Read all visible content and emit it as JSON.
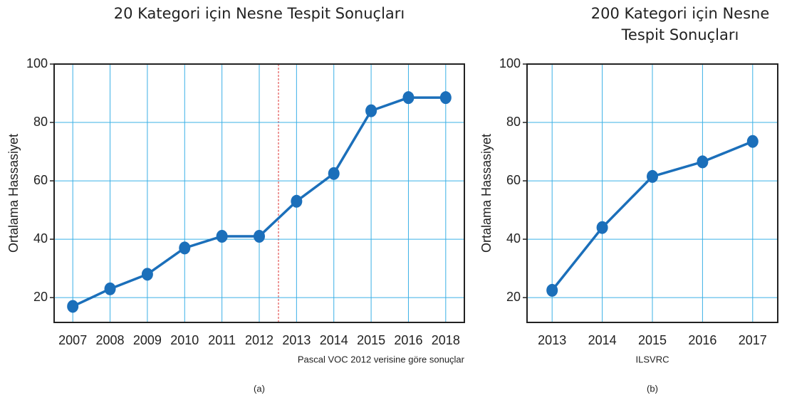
{
  "chart_data": [
    {
      "type": "line",
      "title": "20 Kategori için Nesne Tespit Sonuçları",
      "y_label": "Ortalama Hassasiyet",
      "categories": [
        "2007",
        "2008",
        "2009",
        "2010",
        "2011",
        "2012",
        "2013",
        "2014",
        "2015",
        "2016",
        "2018"
      ],
      "series": [
        {
          "name": "Pascal VOC",
          "color": "#1b6fba",
          "values": [
            17,
            23,
            28,
            37,
            41,
            41,
            53,
            62.5,
            84,
            88.5,
            88.5
          ]
        }
      ],
      "ylim": [
        11.5,
        100
      ],
      "yticks": [
        20,
        40,
        60,
        80,
        100
      ],
      "grid": true,
      "note": "Pascal VOC 2012 verisine göre sonuçlar",
      "caption": "(a)"
    },
    {
      "type": "line",
      "title": "200 Kategori için Nesne Tespit Sonuçları",
      "y_label": "Ortalama Hassasiyet",
      "categories": [
        "2013",
        "2014",
        "2015",
        "2016",
        "2017"
      ],
      "series": [
        {
          "name": "ILSVRC",
          "color": "#1b6fba",
          "values": [
            22.5,
            44,
            61.5,
            66.5,
            73.5
          ]
        }
      ],
      "ylim": [
        11.5,
        100
      ],
      "yticks": [
        20,
        40,
        60,
        80,
        100
      ],
      "grid": true,
      "note": "ILSVRC",
      "caption": "(b)"
    }
  ]
}
